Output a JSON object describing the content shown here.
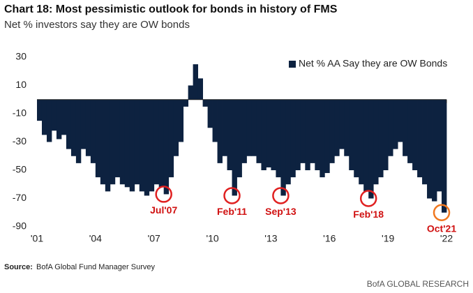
{
  "chart_data": {
    "type": "bar",
    "title": "Chart 18: Most pessimistic outlook for bonds in history of FMS",
    "subtitle": "Net % investors say they are OW bonds",
    "source_label": "Source:",
    "source": "BofA Global Fund Manager Survey",
    "credit": "BofA GLOBAL RESEARCH",
    "legend_position": "upper right",
    "series": [
      {
        "name": "Net % AA Say they are OW Bonds",
        "color": "#0d2240",
        "values": [
          -15,
          -25,
          -30,
          -22,
          -28,
          -25,
          -35,
          -40,
          -45,
          -35,
          -40,
          -45,
          -55,
          -60,
          -65,
          -60,
          -55,
          -60,
          -62,
          -65,
          -60,
          -65,
          -68,
          -65,
          -60,
          -62,
          -67,
          -55,
          -40,
          -30,
          -5,
          10,
          25,
          15,
          -5,
          -20,
          -30,
          -45,
          -40,
          -50,
          -68,
          -55,
          -45,
          -40,
          -40,
          -45,
          -50,
          -48,
          -50,
          -55,
          -68,
          -60,
          -55,
          -50,
          -45,
          -50,
          -45,
          -50,
          -55,
          -52,
          -45,
          -40,
          -35,
          -40,
          -50,
          -55,
          -60,
          -65,
          -70,
          -60,
          -55,
          -50,
          -40,
          -35,
          -30,
          -40,
          -45,
          -50,
          -55,
          -60,
          -70,
          -72,
          -65,
          -80
        ]
      }
    ],
    "x": [
      2001,
      2001.25,
      2001.5,
      2001.75,
      2002,
      2002.25,
      2002.5,
      2002.75,
      2003,
      2003.25,
      2003.5,
      2003.75,
      2004,
      2004.25,
      2004.5,
      2004.75,
      2005,
      2005.25,
      2005.5,
      2005.75,
      2006,
      2006.25,
      2006.5,
      2006.75,
      2007,
      2007.25,
      2007.5,
      2007.75,
      2008,
      2008.25,
      2008.5,
      2008.75,
      2009,
      2009.25,
      2009.5,
      2009.75,
      2010,
      2010.25,
      2010.5,
      2010.75,
      2011,
      2011.25,
      2011.5,
      2011.75,
      2012,
      2012.25,
      2012.5,
      2012.75,
      2013,
      2013.25,
      2013.5,
      2013.75,
      2014,
      2014.25,
      2014.5,
      2014.75,
      2015,
      2015.25,
      2015.5,
      2015.75,
      2016,
      2016.25,
      2016.5,
      2016.75,
      2017,
      2017.25,
      2017.5,
      2017.75,
      2018,
      2018.25,
      2018.5,
      2018.75,
      2019,
      2019.25,
      2019.5,
      2019.75,
      2020,
      2020.25,
      2020.5,
      2020.75,
      2021,
      2021.25,
      2021.5,
      2021.75
    ],
    "xlim": [
      2001,
      2022
    ],
    "xticks": [
      {
        "value": 2001,
        "label": "'01"
      },
      {
        "value": 2004,
        "label": "'04"
      },
      {
        "value": 2007,
        "label": "'07"
      },
      {
        "value": 2010,
        "label": "'10"
      },
      {
        "value": 2013,
        "label": "'13"
      },
      {
        "value": 2016,
        "label": "'16"
      },
      {
        "value": 2019,
        "label": "'19"
      },
      {
        "value": 2022,
        "label": "'22"
      }
    ],
    "ylim": [
      -90,
      30
    ],
    "yticks": [
      30,
      10,
      -10,
      -30,
      -50,
      -70,
      -90
    ],
    "annotations": [
      {
        "text": "Jul'07",
        "x": 2007.5,
        "y": -67,
        "color": "#e02020"
      },
      {
        "text": "Feb'11",
        "x": 2011,
        "y": -68,
        "color": "#e02020"
      },
      {
        "text": "Sep'13",
        "x": 2013.5,
        "y": -68,
        "color": "#e02020"
      },
      {
        "text": "Feb'18",
        "x": 2018,
        "y": -70,
        "color": "#e02020"
      },
      {
        "text": "Oct'21",
        "x": 2021.75,
        "y": -80,
        "color": "#f07820"
      }
    ]
  }
}
